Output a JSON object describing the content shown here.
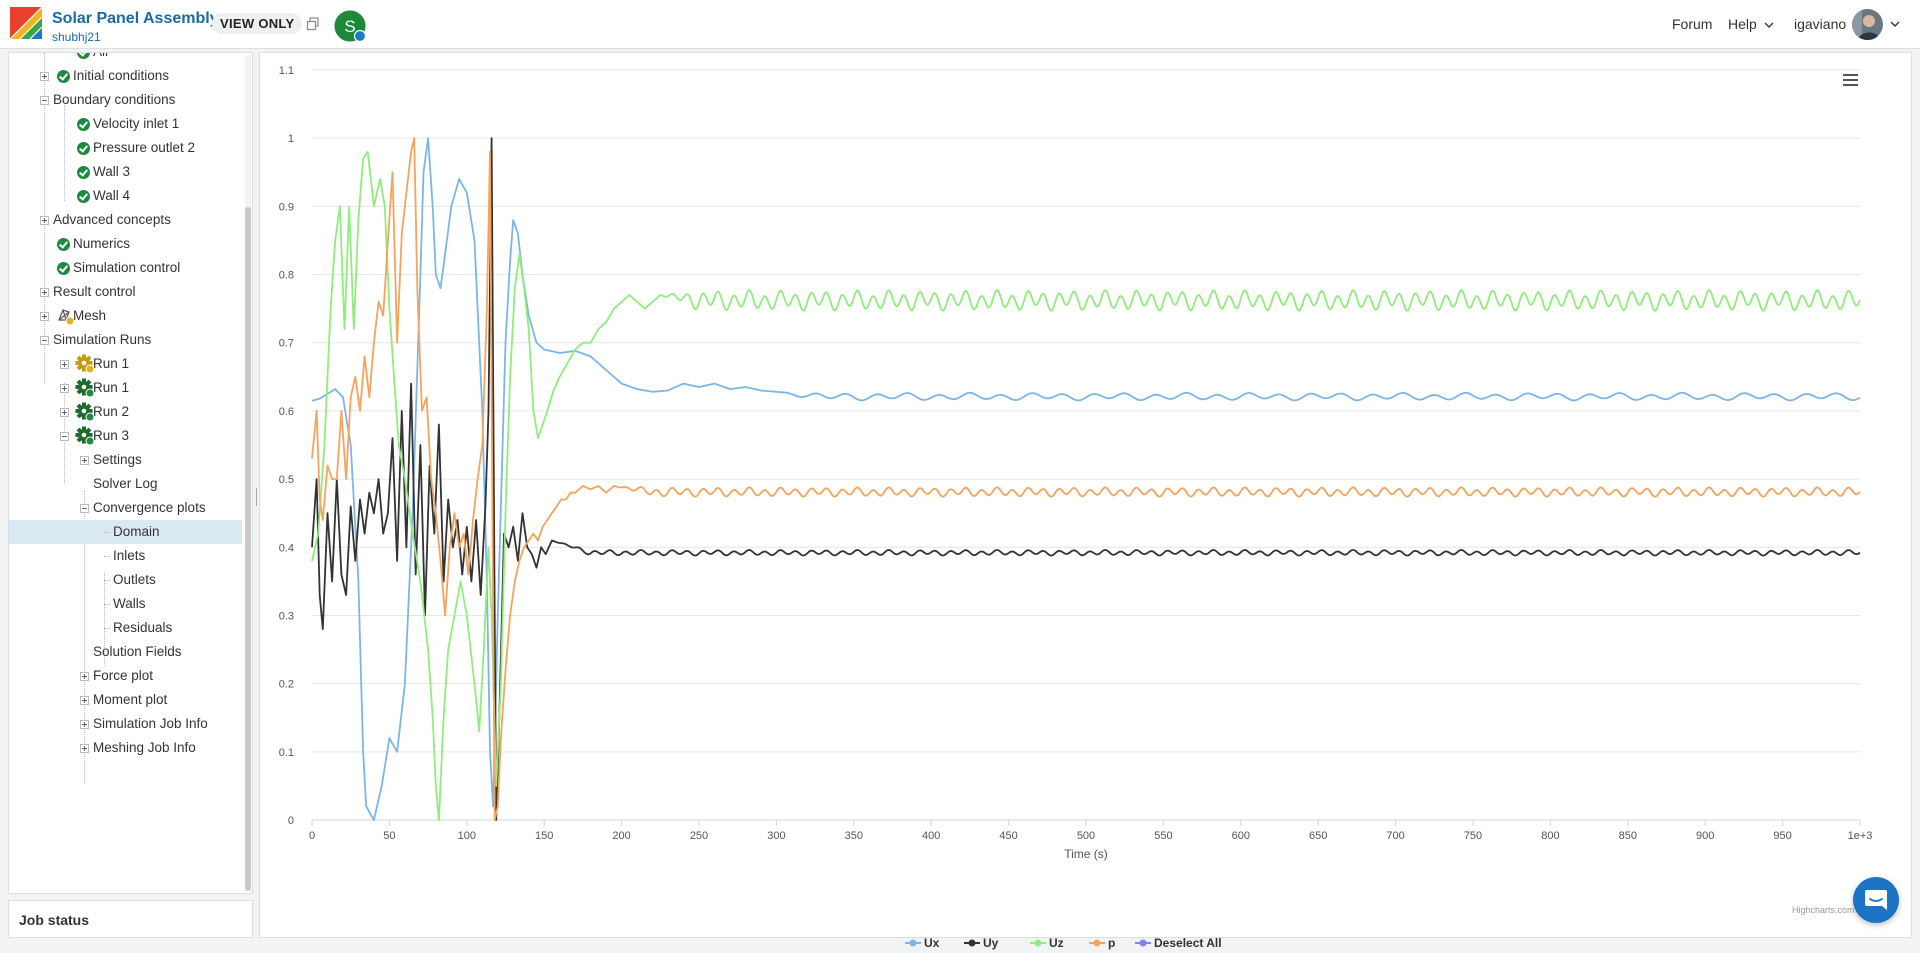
{
  "header": {
    "project_title": "Solar Panel Assembly",
    "project_owner": "shubhj21",
    "view_only_label": "VIEW ONLY",
    "badge_letter": "S",
    "forum_label": "Forum",
    "help_label": "Help",
    "username": "igaviano"
  },
  "sidebar": {
    "items": [
      {
        "label": "Air",
        "level": 3,
        "icon": "check",
        "toggle": "none"
      },
      {
        "label": "Initial conditions",
        "level": 2,
        "icon": "check",
        "toggle": "plus"
      },
      {
        "label": "Boundary conditions",
        "level": 1,
        "icon": "none",
        "toggle": "minus"
      },
      {
        "label": "Velocity inlet 1",
        "level": 3,
        "icon": "check",
        "toggle": "none"
      },
      {
        "label": "Pressure outlet 2",
        "level": 3,
        "icon": "check",
        "toggle": "none"
      },
      {
        "label": "Wall 3",
        "level": 3,
        "icon": "check",
        "toggle": "none"
      },
      {
        "label": "Wall 4",
        "level": 3,
        "icon": "check",
        "toggle": "none"
      },
      {
        "label": "Advanced concepts",
        "level": 1,
        "icon": "none",
        "toggle": "plus"
      },
      {
        "label": "Numerics",
        "level": 2,
        "icon": "check",
        "toggle": "none"
      },
      {
        "label": "Simulation control",
        "level": 2,
        "icon": "check",
        "toggle": "none"
      },
      {
        "label": "Result control",
        "level": 1,
        "icon": "none",
        "toggle": "plus"
      },
      {
        "label": "Mesh",
        "level": 2,
        "icon": "mesh",
        "toggle": "plus"
      },
      {
        "label": "Simulation Runs",
        "level": 1,
        "icon": "none",
        "toggle": "minus"
      },
      {
        "label": "Run 1",
        "level": 3,
        "icon": "gear-warning",
        "toggle": "plus"
      },
      {
        "label": "Run 1",
        "level": 3,
        "icon": "gear-ok",
        "toggle": "plus"
      },
      {
        "label": "Run 2",
        "level": 3,
        "icon": "gear-ok",
        "toggle": "plus"
      },
      {
        "label": "Run 3",
        "level": 3,
        "icon": "gear-ok",
        "toggle": "minus"
      },
      {
        "label": "Settings",
        "level": 4,
        "icon": "none",
        "toggle": "plus"
      },
      {
        "label": "Solver Log",
        "level": 4,
        "icon": "none",
        "toggle": "none"
      },
      {
        "label": "Convergence plots",
        "level": 4,
        "icon": "none",
        "toggle": "minus"
      },
      {
        "label": "Domain",
        "level": 5,
        "icon": "none",
        "toggle": "none",
        "selected": true
      },
      {
        "label": "Inlets",
        "level": 5,
        "icon": "none",
        "toggle": "none"
      },
      {
        "label": "Outlets",
        "level": 5,
        "icon": "none",
        "toggle": "none"
      },
      {
        "label": "Walls",
        "level": 5,
        "icon": "none",
        "toggle": "none"
      },
      {
        "label": "Residuals",
        "level": 5,
        "icon": "none",
        "toggle": "none"
      },
      {
        "label": "Solution Fields",
        "level": 4,
        "icon": "none",
        "toggle": "none"
      },
      {
        "label": "Force plot",
        "level": 4,
        "icon": "none",
        "toggle": "plus"
      },
      {
        "label": "Moment plot",
        "level": 4,
        "icon": "none",
        "toggle": "plus"
      },
      {
        "label": "Simulation Job Info",
        "level": 4,
        "icon": "none",
        "toggle": "plus"
      },
      {
        "label": "Meshing Job Info",
        "level": 4,
        "icon": "none",
        "toggle": "plus"
      }
    ]
  },
  "job_status": {
    "label": "Job status"
  },
  "chart": {
    "credits": "Highcharts.com",
    "deselect_all_label": "Deselect All"
  },
  "chart_data": {
    "type": "line",
    "title": "",
    "xlabel": "Time (s)",
    "ylabel": "",
    "xlim": [
      0,
      1000
    ],
    "ylim": [
      0,
      1.1
    ],
    "x_ticks": [
      "0",
      "50",
      "100",
      "150",
      "200",
      "250",
      "300",
      "350",
      "400",
      "450",
      "500",
      "550",
      "600",
      "650",
      "700",
      "750",
      "800",
      "850",
      "900",
      "950",
      "1e+3"
    ],
    "y_ticks": [
      "0",
      "0.1",
      "0.2",
      "0.3",
      "0.4",
      "0.5",
      "0.6",
      "0.7",
      "0.8",
      "0.9",
      "1",
      "1.1"
    ],
    "grid": "horizontal",
    "legend": "bottom-center",
    "series": [
      {
        "name": "Ux",
        "color": "#7cb5ec",
        "oscillation": {
          "start": 200,
          "mean": 0.621,
          "amplitude": 0.004,
          "period": 20
        },
        "points": [
          [
            0,
            0.615
          ],
          [
            5,
            0.618
          ],
          [
            10,
            0.625
          ],
          [
            15,
            0.632
          ],
          [
            20,
            0.62
          ],
          [
            25,
            0.55
          ],
          [
            30,
            0.35
          ],
          [
            33,
            0.1
          ],
          [
            35,
            0.02
          ],
          [
            40,
            0.0
          ],
          [
            45,
            0.05
          ],
          [
            50,
            0.12
          ],
          [
            55,
            0.1
          ],
          [
            60,
            0.2
          ],
          [
            65,
            0.45
          ],
          [
            70,
            0.8
          ],
          [
            72,
            0.95
          ],
          [
            75,
            1.0
          ],
          [
            78,
            0.9
          ],
          [
            80,
            0.8
          ],
          [
            83,
            0.78
          ],
          [
            86,
            0.83
          ],
          [
            90,
            0.9
          ],
          [
            95,
            0.94
          ],
          [
            100,
            0.92
          ],
          [
            105,
            0.85
          ],
          [
            110,
            0.6
          ],
          [
            113,
            0.35
          ],
          [
            115,
            0.1
          ],
          [
            117,
            0.02
          ],
          [
            120,
            0.3
          ],
          [
            125,
            0.7
          ],
          [
            128,
            0.82
          ],
          [
            130,
            0.88
          ],
          [
            133,
            0.86
          ],
          [
            136,
            0.8
          ],
          [
            140,
            0.74
          ],
          [
            145,
            0.7
          ],
          [
            150,
            0.69
          ],
          [
            160,
            0.685
          ],
          [
            170,
            0.688
          ],
          [
            180,
            0.68
          ],
          [
            190,
            0.66
          ],
          [
            200,
            0.64
          ],
          [
            210,
            0.632
          ],
          [
            220,
            0.628
          ],
          [
            230,
            0.63
          ],
          [
            240,
            0.64
          ],
          [
            250,
            0.635
          ],
          [
            260,
            0.64
          ],
          [
            270,
            0.632
          ],
          [
            280,
            0.635
          ],
          [
            290,
            0.63
          ],
          [
            300,
            0.628
          ]
        ]
      },
      {
        "name": "Uy",
        "color": "#333333",
        "oscillation": {
          "start": 160,
          "mean": 0.392,
          "amplitude": 0.003,
          "period": 10
        },
        "points": [
          [
            0,
            0.4
          ],
          [
            3,
            0.5
          ],
          [
            5,
            0.33
          ],
          [
            7,
            0.28
          ],
          [
            10,
            0.45
          ],
          [
            13,
            0.35
          ],
          [
            16,
            0.5
          ],
          [
            19,
            0.36
          ],
          [
            22,
            0.33
          ],
          [
            25,
            0.46
          ],
          [
            28,
            0.38
          ],
          [
            31,
            0.47
          ],
          [
            34,
            0.42
          ],
          [
            37,
            0.48
          ],
          [
            40,
            0.45
          ],
          [
            43,
            0.5
          ],
          [
            46,
            0.42
          ],
          [
            49,
            0.45
          ],
          [
            52,
            0.56
          ],
          [
            55,
            0.38
          ],
          [
            58,
            0.6
          ],
          [
            61,
            0.4
          ],
          [
            64,
            0.64
          ],
          [
            67,
            0.36
          ],
          [
            70,
            0.55
          ],
          [
            73,
            0.3
          ],
          [
            76,
            0.52
          ],
          [
            79,
            0.42
          ],
          [
            82,
            0.58
          ],
          [
            85,
            0.35
          ],
          [
            88,
            0.47
          ],
          [
            91,
            0.4
          ],
          [
            94,
            0.44
          ],
          [
            97,
            0.36
          ],
          [
            100,
            0.43
          ],
          [
            103,
            0.35
          ],
          [
            106,
            0.44
          ],
          [
            109,
            0.33
          ],
          [
            112,
            0.46
          ],
          [
            114,
            0.6
          ],
          [
            116,
            1.0
          ],
          [
            118,
            0.3
          ],
          [
            119,
            0.0
          ],
          [
            121,
            0.15
          ],
          [
            124,
            0.42
          ],
          [
            127,
            0.4
          ],
          [
            130,
            0.43
          ],
          [
            133,
            0.38
          ],
          [
            136,
            0.45
          ],
          [
            139,
            0.4
          ],
          [
            142,
            0.39
          ],
          [
            145,
            0.37
          ],
          [
            148,
            0.4
          ],
          [
            151,
            0.39
          ],
          [
            155,
            0.41
          ]
        ]
      },
      {
        "name": "Uz",
        "color": "#90ed7d",
        "oscillation": {
          "start": 230,
          "mean": 0.762,
          "amplitude": 0.011,
          "period": 10
        },
        "points": [
          [
            0,
            0.38
          ],
          [
            4,
            0.42
          ],
          [
            8,
            0.55
          ],
          [
            12,
            0.75
          ],
          [
            15,
            0.85
          ],
          [
            18,
            0.9
          ],
          [
            21,
            0.72
          ],
          [
            24,
            0.9
          ],
          [
            27,
            0.72
          ],
          [
            30,
            0.88
          ],
          [
            33,
            0.97
          ],
          [
            36,
            0.98
          ],
          [
            40,
            0.9
          ],
          [
            44,
            0.94
          ],
          [
            47,
            0.9
          ],
          [
            50,
            0.75
          ],
          [
            53,
            0.65
          ],
          [
            56,
            0.55
          ],
          [
            60,
            0.5
          ],
          [
            65,
            0.42
          ],
          [
            70,
            0.35
          ],
          [
            75,
            0.25
          ],
          [
            78,
            0.15
          ],
          [
            80,
            0.05
          ],
          [
            82,
            0.0
          ],
          [
            85,
            0.15
          ],
          [
            88,
            0.25
          ],
          [
            92,
            0.3
          ],
          [
            96,
            0.35
          ],
          [
            100,
            0.3
          ],
          [
            105,
            0.2
          ],
          [
            108,
            0.13
          ],
          [
            111,
            0.25
          ],
          [
            114,
            0.4
          ],
          [
            116,
            0.3
          ],
          [
            119,
            0.05
          ],
          [
            122,
            0.2
          ],
          [
            125,
            0.45
          ],
          [
            128,
            0.65
          ],
          [
            131,
            0.78
          ],
          [
            134,
            0.83
          ],
          [
            137,
            0.78
          ],
          [
            140,
            0.72
          ],
          [
            143,
            0.6
          ],
          [
            146,
            0.56
          ],
          [
            149,
            0.58
          ],
          [
            152,
            0.6
          ],
          [
            156,
            0.63
          ],
          [
            160,
            0.65
          ],
          [
            165,
            0.67
          ],
          [
            170,
            0.69
          ],
          [
            175,
            0.7
          ],
          [
            180,
            0.7
          ],
          [
            185,
            0.72
          ],
          [
            190,
            0.73
          ],
          [
            195,
            0.75
          ],
          [
            200,
            0.76
          ],
          [
            205,
            0.77
          ],
          [
            210,
            0.76
          ],
          [
            215,
            0.75
          ],
          [
            220,
            0.76
          ],
          [
            225,
            0.77
          ]
        ]
      },
      {
        "name": "p",
        "color": "#f7a35c",
        "oscillation": {
          "start": 200,
          "mean": 0.481,
          "amplitude": 0.005,
          "period": 10
        },
        "points": [
          [
            0,
            0.53
          ],
          [
            3,
            0.6
          ],
          [
            5,
            0.47
          ],
          [
            7,
            0.44
          ],
          [
            10,
            0.52
          ],
          [
            13,
            0.5
          ],
          [
            16,
            0.5
          ],
          [
            19,
            0.6
          ],
          [
            22,
            0.5
          ],
          [
            25,
            0.62
          ],
          [
            28,
            0.65
          ],
          [
            31,
            0.6
          ],
          [
            34,
            0.68
          ],
          [
            37,
            0.62
          ],
          [
            40,
            0.7
          ],
          [
            43,
            0.76
          ],
          [
            46,
            0.74
          ],
          [
            49,
            0.85
          ],
          [
            52,
            0.95
          ],
          [
            55,
            0.7
          ],
          [
            58,
            0.86
          ],
          [
            61,
            0.92
          ],
          [
            64,
            0.98
          ],
          [
            66,
            1.0
          ],
          [
            68,
            0.78
          ],
          [
            71,
            0.6
          ],
          [
            74,
            0.62
          ],
          [
            77,
            0.5
          ],
          [
            80,
            0.45
          ],
          [
            83,
            0.38
          ],
          [
            86,
            0.3
          ],
          [
            89,
            0.4
          ],
          [
            92,
            0.45
          ],
          [
            95,
            0.4
          ],
          [
            98,
            0.42
          ],
          [
            101,
            0.36
          ],
          [
            104,
            0.44
          ],
          [
            107,
            0.5
          ],
          [
            110,
            0.55
          ],
          [
            113,
            0.75
          ],
          [
            115,
            0.98
          ],
          [
            117,
            0.3
          ],
          [
            118,
            0.0
          ],
          [
            120,
            0.02
          ],
          [
            122,
            0.12
          ],
          [
            125,
            0.22
          ],
          [
            128,
            0.3
          ],
          [
            131,
            0.35
          ],
          [
            134,
            0.38
          ],
          [
            137,
            0.4
          ],
          [
            140,
            0.41
          ],
          [
            143,
            0.42
          ],
          [
            146,
            0.41
          ],
          [
            149,
            0.43
          ],
          [
            152,
            0.44
          ],
          [
            155,
            0.45
          ],
          [
            158,
            0.46
          ],
          [
            161,
            0.47
          ],
          [
            164,
            0.47
          ],
          [
            167,
            0.48
          ],
          [
            170,
            0.48
          ],
          [
            175,
            0.49
          ],
          [
            180,
            0.485
          ],
          [
            185,
            0.49
          ],
          [
            190,
            0.48
          ],
          [
            195,
            0.49
          ]
        ]
      }
    ]
  }
}
